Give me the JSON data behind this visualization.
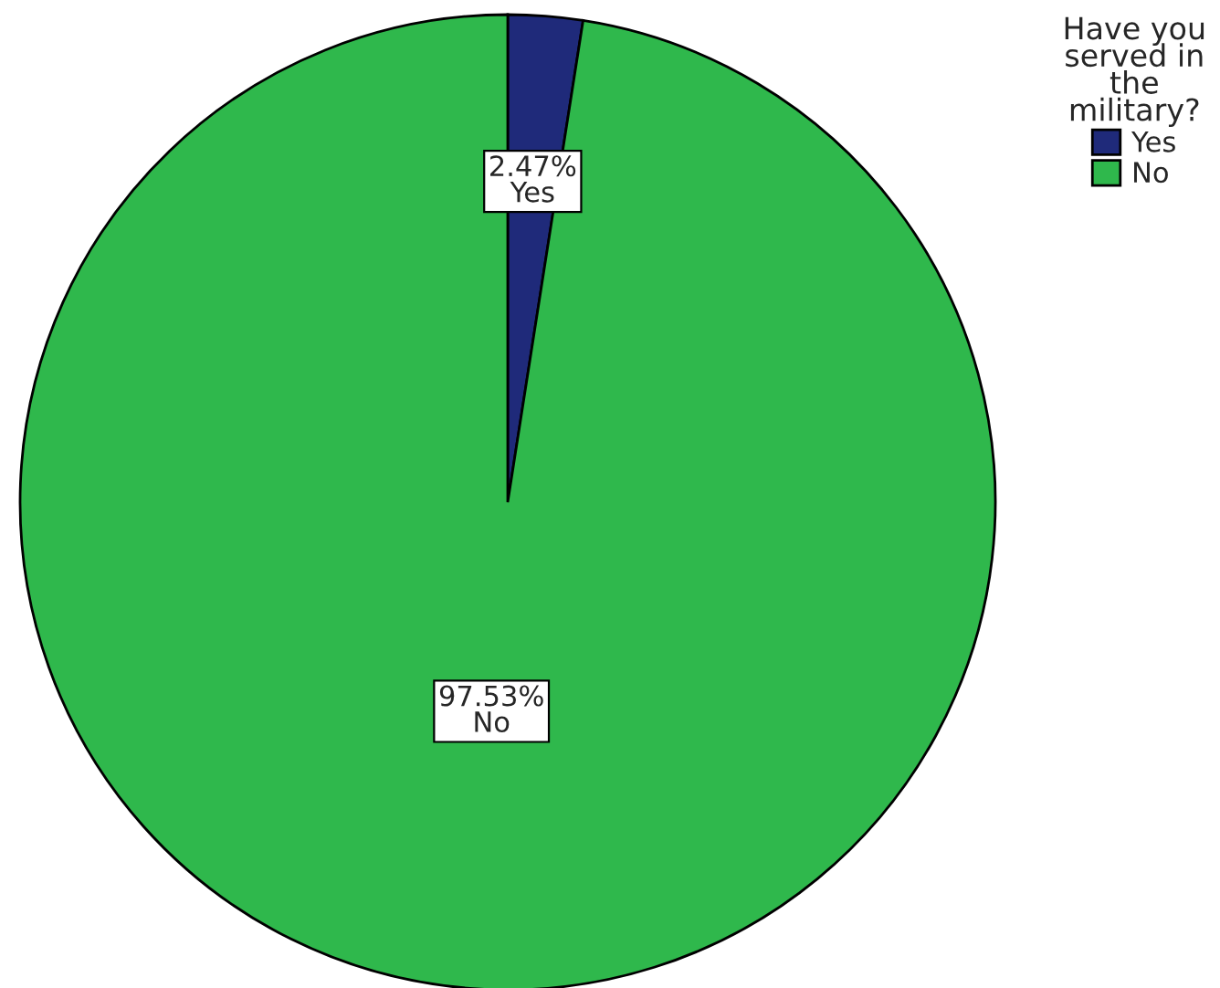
{
  "chart_data": {
    "type": "pie",
    "categories": [
      "Yes",
      "No"
    ],
    "values": [
      2.47,
      97.53
    ],
    "colors": [
      "#1f2a7a",
      "#2fb84c"
    ],
    "value_labels": [
      "2.47%",
      "97.53%"
    ],
    "legend_title": "Have you\nserved in\nthe\nmilitary?",
    "legend": "top right"
  }
}
